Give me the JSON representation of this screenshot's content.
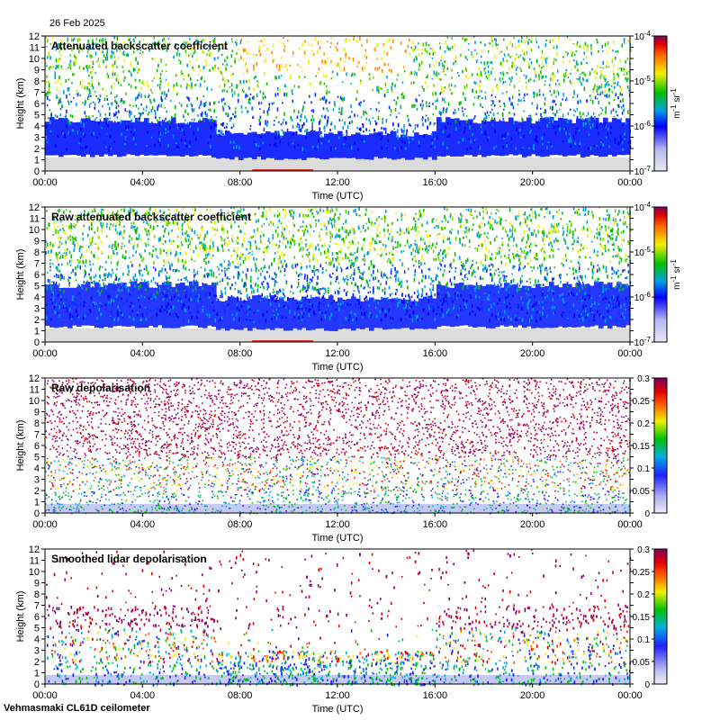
{
  "header": {
    "date": "26 Feb 2025"
  },
  "footer": {
    "station": "Vehmasmaki CL61D ceilometer"
  },
  "chart_data": [
    {
      "type": "heatmap",
      "title": "Attenuated backscatter coefficient",
      "xlabel": "Time (UTC)",
      "ylabel": "Height (km)",
      "x_ticks": [
        "00:00",
        "04:00",
        "08:00",
        "12:00",
        "16:00",
        "20:00",
        "00:00"
      ],
      "y_ticks": [
        "0",
        "1",
        "2",
        "3",
        "4",
        "5",
        "6",
        "7",
        "8",
        "9",
        "10",
        "11",
        "12"
      ],
      "ylim": [
        0,
        12
      ],
      "xlim_hours": [
        0,
        24
      ],
      "colorbar": {
        "scale": "log",
        "ticks": [
          "10-7",
          "10-6",
          "10-5",
          "10-4"
        ],
        "unit": "m-1 sr-1"
      }
    },
    {
      "type": "heatmap",
      "title": "Raw attenuated backscatter coefficient",
      "xlabel": "Time (UTC)",
      "ylabel": "Height (km)",
      "x_ticks": [
        "00:00",
        "04:00",
        "08:00",
        "12:00",
        "16:00",
        "20:00",
        "00:00"
      ],
      "y_ticks": [
        "0",
        "1",
        "2",
        "3",
        "4",
        "5",
        "6",
        "7",
        "8",
        "9",
        "10",
        "11",
        "12"
      ],
      "ylim": [
        0,
        12
      ],
      "xlim_hours": [
        0,
        24
      ],
      "colorbar": {
        "scale": "log",
        "ticks": [
          "10-7",
          "10-6",
          "10-5",
          "10-4"
        ],
        "unit": "m-1 sr-1"
      }
    },
    {
      "type": "heatmap",
      "title": "Raw depolarisation",
      "xlabel": "Time (UTC)",
      "ylabel": "Height (km)",
      "x_ticks": [
        "00:00",
        "04:00",
        "08:00",
        "12:00",
        "16:00",
        "20:00",
        "00:00"
      ],
      "y_ticks": [
        "0",
        "1",
        "2",
        "3",
        "4",
        "5",
        "6",
        "7",
        "8",
        "9",
        "10",
        "11",
        "12"
      ],
      "ylim": [
        0,
        12
      ],
      "xlim_hours": [
        0,
        24
      ],
      "colorbar": {
        "scale": "linear",
        "range": [
          0,
          0.3
        ],
        "ticks": [
          "0",
          "0.05",
          "0.1",
          "0.15",
          "0.2",
          "0.25",
          "0.3"
        ]
      }
    },
    {
      "type": "heatmap",
      "title": "Smoothed lidar depolarisation",
      "xlabel": "Time (UTC)",
      "ylabel": "Height (km)",
      "x_ticks": [
        "00:00",
        "04:00",
        "08:00",
        "12:00",
        "16:00",
        "20:00",
        "00:00"
      ],
      "y_ticks": [
        "0",
        "1",
        "2",
        "3",
        "4",
        "5",
        "6",
        "7",
        "8",
        "9",
        "10",
        "11",
        "12"
      ],
      "ylim": [
        0,
        12
      ],
      "xlim_hours": [
        0,
        24
      ],
      "colorbar": {
        "scale": "linear",
        "range": [
          0,
          0.3
        ],
        "ticks": [
          "0",
          "0.05",
          "0.1",
          "0.15",
          "0.2",
          "0.25",
          "0.3"
        ]
      }
    }
  ]
}
